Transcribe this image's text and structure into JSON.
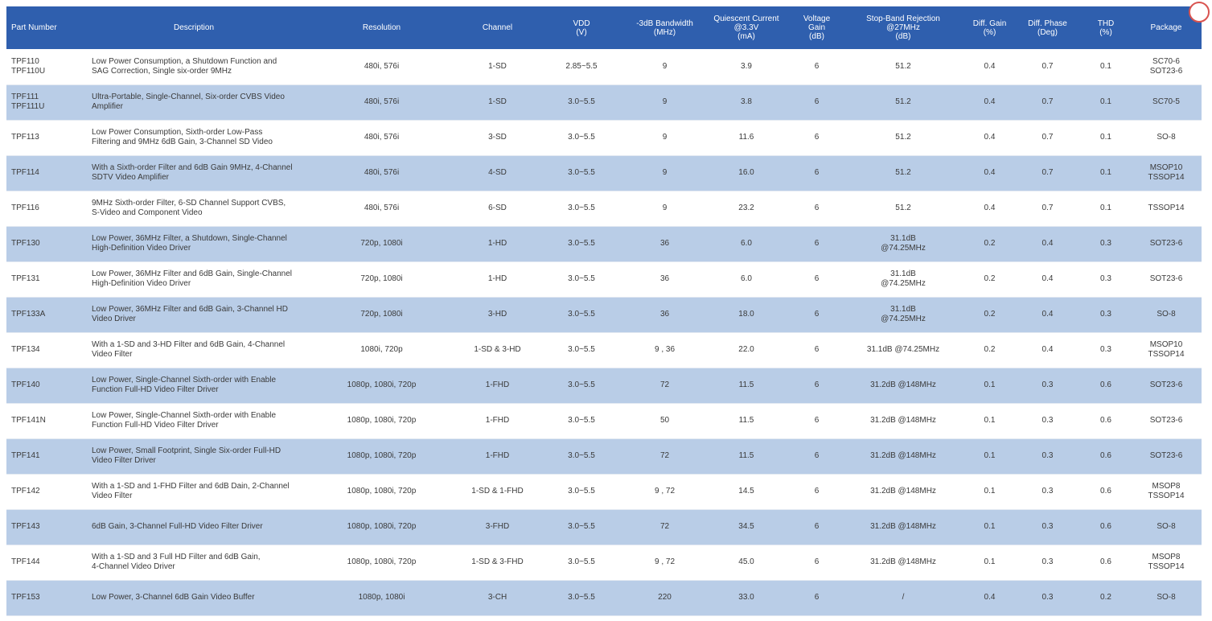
{
  "table": {
    "headers": {
      "part_number": "Part Number",
      "description": "Description",
      "resolution": "Resolution",
      "channel": "Channel",
      "vdd": "VDD\n(V)",
      "bandwidth": "-3dB Bandwidth\n(MHz)",
      "quiescent": "Quiescent Current\n@3.3V\n(mA)",
      "gain": "Voltage Gain\n(dB)",
      "rejection": "Stop-Band Rejection\n@27MHz\n(dB)",
      "diff_gain": "Diff. Gain\n(%)",
      "diff_phase": "Diff. Phase\n(Deg)",
      "thd": "THD\n(%)",
      "package": "Package"
    },
    "rows": [
      {
        "part": "TPF110\nTPF110U",
        "desc": "Low Power Consumption, a Shutdown Function and SAG Correction, Single six-order 9MHz",
        "res": "480i, 576i",
        "ch": "1-SD",
        "vdd": "2.85~5.5",
        "bw": "9",
        "iq": "3.9",
        "gain": "6",
        "rej": "51.2",
        "dg": "0.4",
        "dp": "0.7",
        "thd": "0.1",
        "pkg": "SC70-6\nSOT23-6"
      },
      {
        "part": "TPF111\nTPF111U",
        "desc": "Ultra-Portable, Single-Channel, Six-order CVBS Video Amplifier",
        "res": "480i, 576i",
        "ch": "1-SD",
        "vdd": "3.0~5.5",
        "bw": "9",
        "iq": "3.8",
        "gain": "6",
        "rej": "51.2",
        "dg": "0.4",
        "dp": "0.7",
        "thd": "0.1",
        "pkg": "SC70-5"
      },
      {
        "part": "TPF113",
        "desc": "Low Power Consumption, Sixth-order Low-Pass Filtering and 9MHz 6dB Gain, 3-Channel SD Video",
        "res": "480i, 576i",
        "ch": "3-SD",
        "vdd": "3.0~5.5",
        "bw": "9",
        "iq": "11.6",
        "gain": "6",
        "rej": "51.2",
        "dg": "0.4",
        "dp": "0.7",
        "thd": "0.1",
        "pkg": "SO-8"
      },
      {
        "part": "TPF114",
        "desc": "With a Sixth-order Filter and 6dB Gain 9MHz, 4-Channel SDTV Video Amplifier",
        "res": "480i, 576i",
        "ch": "4-SD",
        "vdd": "3.0~5.5",
        "bw": "9",
        "iq": "16.0",
        "gain": "6",
        "rej": "51.2",
        "dg": "0.4",
        "dp": "0.7",
        "thd": "0.1",
        "pkg": "MSOP10\nTSSOP14"
      },
      {
        "part": "TPF116",
        "desc": "9MHz Sixth-order Filter, 6-SD Channel Support CVBS, S-Video and Component Video",
        "res": "480i, 576i",
        "ch": "6-SD",
        "vdd": "3.0~5.5",
        "bw": "9",
        "iq": "23.2",
        "gain": "6",
        "rej": "51.2",
        "dg": "0.4",
        "dp": "0.7",
        "thd": "0.1",
        "pkg": "TSSOP14"
      },
      {
        "part": "TPF130",
        "desc": "Low Power, 36MHz Filter, a Shutdown, Single-Channel High-Definition Video Driver",
        "res": "720p, 1080i",
        "ch": "1-HD",
        "vdd": "3.0~5.5",
        "bw": "36",
        "iq": "6.0",
        "gain": "6",
        "rej": "31.1dB\n@74.25MHz",
        "dg": "0.2",
        "dp": "0.4",
        "thd": "0.3",
        "pkg": "SOT23-6"
      },
      {
        "part": "TPF131",
        "desc": "Low Power, 36MHz Filter and 6dB Gain, Single-Channel High-Definition Video Driver",
        "res": "720p, 1080i",
        "ch": "1-HD",
        "vdd": "3.0~5.5",
        "bw": "36",
        "iq": "6.0",
        "gain": "6",
        "rej": "31.1dB\n@74.25MHz",
        "dg": "0.2",
        "dp": "0.4",
        "thd": "0.3",
        "pkg": "SOT23-6"
      },
      {
        "part": "TPF133A",
        "desc": "Low Power, 36MHz Filter and 6dB Gain, 3-Channel HD Video Driver",
        "res": "720p, 1080i",
        "ch": "3-HD",
        "vdd": "3.0~5.5",
        "bw": "36",
        "iq": "18.0",
        "gain": "6",
        "rej": "31.1dB\n@74.25MHz",
        "dg": "0.2",
        "dp": "0.4",
        "thd": "0.3",
        "pkg": "SO-8"
      },
      {
        "part": "TPF134",
        "desc": "With a 1-SD and 3-HD Filter and 6dB Gain, 4-Channel Video Filter",
        "res": "1080i, 720p",
        "ch": "1-SD & 3-HD",
        "vdd": "3.0~5.5",
        "bw": "9 , 36",
        "iq": "22.0",
        "gain": "6",
        "rej": "31.1dB @74.25MHz",
        "dg": "0.2",
        "dp": "0.4",
        "thd": "0.3",
        "pkg": "MSOP10\nTSSOP14"
      },
      {
        "part": "TPF140",
        "desc": "Low Power, Single-Channel Sixth-order with Enable Function Full-HD Video Filter Driver",
        "res": "1080p, 1080i, 720p",
        "ch": "1-FHD",
        "vdd": "3.0~5.5",
        "bw": "72",
        "iq": "11.5",
        "gain": "6",
        "rej": "31.2dB @148MHz",
        "dg": "0.1",
        "dp": "0.3",
        "thd": "0.6",
        "pkg": "SOT23-6"
      },
      {
        "part": "TPF141N",
        "desc": "Low Power, Single-Channel Sixth-order with Enable Function Full-HD Video Filter Driver",
        "res": "1080p, 1080i, 720p",
        "ch": "1-FHD",
        "vdd": "3.0~5.5",
        "bw": "50",
        "iq": "11.5",
        "gain": "6",
        "rej": "31.2dB @148MHz",
        "dg": "0.1",
        "dp": "0.3",
        "thd": "0.6",
        "pkg": "SOT23-6"
      },
      {
        "part": "TPF141",
        "desc": "Low Power, Small Footprint, Single Six-order Full-HD Video Filter Driver",
        "res": "1080p, 1080i, 720p",
        "ch": "1-FHD",
        "vdd": "3.0~5.5",
        "bw": "72",
        "iq": "11.5",
        "gain": "6",
        "rej": "31.2dB @148MHz",
        "dg": "0.1",
        "dp": "0.3",
        "thd": "0.6",
        "pkg": "SOT23-6"
      },
      {
        "part": "TPF142",
        "desc": "With a 1-SD and 1-FHD Filter and 6dB Dain, 2-Channel Video Filter",
        "res": "1080p, 1080i, 720p",
        "ch": "1-SD & 1-FHD",
        "vdd": "3.0~5.5",
        "bw": "9 , 72",
        "iq": "14.5",
        "gain": "6",
        "rej": "31.2dB @148MHz",
        "dg": "0.1",
        "dp": "0.3",
        "thd": "0.6",
        "pkg": "MSOP8\nTSSOP14"
      },
      {
        "part": "TPF143",
        "desc": "6dB Gain, 3-Channel Full-HD Video Filter Driver",
        "res": "1080p, 1080i, 720p",
        "ch": "3-FHD",
        "vdd": "3.0~5.5",
        "bw": "72",
        "iq": "34.5",
        "gain": "6",
        "rej": "31.2dB @148MHz",
        "dg": "0.1",
        "dp": "0.3",
        "thd": "0.6",
        "pkg": "SO-8"
      },
      {
        "part": "TPF144",
        "desc": "With a 1-SD and 3 Full HD Filter and 6dB Gain,\n4-Channel Video Driver",
        "res": "1080p, 1080i, 720p",
        "ch": "1-SD & 3-FHD",
        "vdd": "3.0~5.5",
        "bw": "9 , 72",
        "iq": "45.0",
        "gain": "6",
        "rej": "31.2dB @148MHz",
        "dg": "0.1",
        "dp": "0.3",
        "thd": "0.6",
        "pkg": "MSOP8\nTSSOP14"
      },
      {
        "part": "TPF153",
        "desc": "Low Power, 3-Channel 6dB Gain Video Buffer",
        "res": "1080p, 1080i",
        "ch": "3-CH",
        "vdd": "3.0~5.5",
        "bw": "220",
        "iq": "33.0",
        "gain": "6",
        "rej": "/",
        "dg": "0.4",
        "dp": "0.3",
        "thd": "0.2",
        "pkg": "SO-8"
      }
    ]
  },
  "colors": {
    "header_bg": "#2f5fae",
    "row_alt_bg": "#b9cde7",
    "text": "#3a3a3a"
  }
}
